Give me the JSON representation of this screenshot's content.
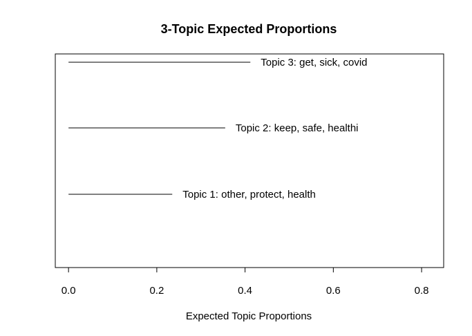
{
  "chart_data": {
    "type": "bar",
    "title": "3-Topic Expected Proportions",
    "xlabel": "Expected Topic Proportions",
    "ylabel": "",
    "xlim": [
      -0.03,
      0.85
    ],
    "xticks": [
      "0.0",
      "0.2",
      "0.4",
      "0.6",
      "0.8"
    ],
    "grid": false,
    "series": [
      {
        "label": "Topic 1: other, protect, health",
        "value": 0.235
      },
      {
        "label": "Topic 2: keep, safe, healthi",
        "value": 0.355
      },
      {
        "label": "Topic 3: get, sick, covid",
        "value": 0.412
      }
    ]
  }
}
